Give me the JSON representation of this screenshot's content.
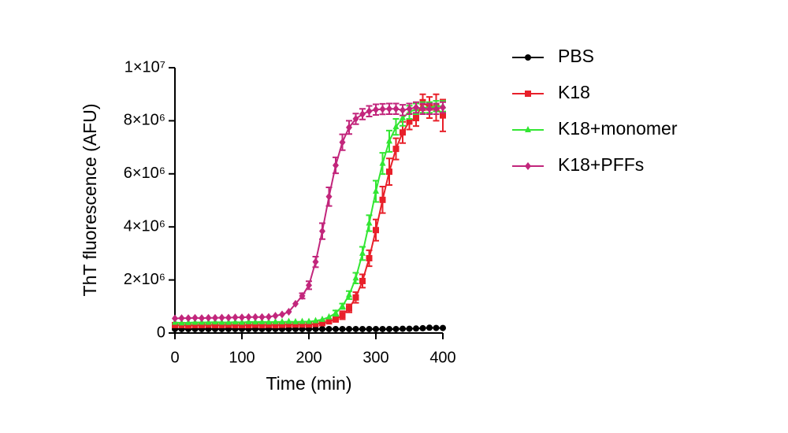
{
  "chart_data": {
    "type": "line",
    "xlabel": "Time (min)",
    "ylabel": "ThT fluorescence (AFU)",
    "xlim": [
      0,
      400
    ],
    "xticks": [
      0,
      100,
      200,
      300,
      400
    ],
    "ylim": [
      0,
      10000000
    ],
    "yticks": [
      0,
      {
        "value": 2000000,
        "label": "2×10⁶"
      },
      {
        "value": 4000000,
        "label": "4×10⁶"
      },
      {
        "value": 6000000,
        "label": "6×10⁶"
      },
      {
        "value": 8000000,
        "label": "8×10⁶"
      },
      {
        "value": 10000000,
        "label": "1×10⁷"
      }
    ],
    "x": [
      0,
      10,
      20,
      30,
      40,
      50,
      60,
      70,
      80,
      90,
      100,
      110,
      120,
      130,
      140,
      150,
      160,
      170,
      180,
      190,
      200,
      210,
      220,
      230,
      240,
      250,
      260,
      270,
      280,
      290,
      300,
      310,
      320,
      330,
      340,
      350,
      360,
      370,
      380,
      390,
      400
    ],
    "series": [
      {
        "name": "PBS",
        "color": "#000000",
        "marker": "circle",
        "values": [
          150000,
          150000,
          150000,
          150000,
          150000,
          150000,
          150000,
          150000,
          150000,
          150000,
          150000,
          150000,
          150000,
          150000,
          150000,
          150000,
          150000,
          150000,
          150000,
          150000,
          150000,
          150000,
          150000,
          150000,
          150000,
          150000,
          150000,
          150000,
          150000,
          150000,
          150000,
          150000,
          150000,
          150000,
          160000,
          160000,
          170000,
          180000,
          200000,
          190000,
          190000
        ],
        "errors": [
          0,
          0,
          0,
          0,
          0,
          0,
          0,
          0,
          0,
          0,
          0,
          0,
          0,
          0,
          0,
          0,
          0,
          0,
          0,
          0,
          0,
          0,
          0,
          0,
          0,
          0,
          0,
          0,
          0,
          0,
          0,
          0,
          0,
          0,
          0,
          0,
          0,
          0,
          0,
          0,
          0
        ]
      },
      {
        "name": "K18",
        "color": "#e8202a",
        "marker": "square",
        "values": [
          300000,
          300000,
          290000,
          300000,
          300000,
          310000,
          300000,
          300000,
          310000,
          300000,
          300000,
          300000,
          310000,
          300000,
          310000,
          300000,
          310000,
          320000,
          320000,
          320000,
          320000,
          340000,
          370000,
          440000,
          520000,
          670000,
          930000,
          1340000,
          1960000,
          2820000,
          3880000,
          5020000,
          6080000,
          6940000,
          7560000,
          7970000,
          8100000,
          8700000,
          8500000,
          8500000,
          8200000
        ],
        "errors": [
          0,
          0,
          0,
          0,
          0,
          0,
          0,
          0,
          0,
          0,
          0,
          0,
          0,
          0,
          0,
          0,
          0,
          0,
          0,
          0,
          0,
          0,
          0,
          0,
          100000,
          150000,
          150000,
          200000,
          250000,
          300000,
          400000,
          500000,
          500000,
          400000,
          400000,
          300000,
          300000,
          300000,
          400000,
          500000,
          600000
        ]
      },
      {
        "name": "K18+monomer",
        "color": "#33e633",
        "marker": "triangle",
        "values": [
          400000,
          380000,
          390000,
          400000,
          400000,
          400000,
          410000,
          400000,
          400000,
          410000,
          400000,
          420000,
          410000,
          420000,
          410000,
          420000,
          420000,
          430000,
          420000,
          430000,
          430000,
          460000,
          510000,
          600000,
          750000,
          1010000,
          1430000,
          2070000,
          3000000,
          4140000,
          5340000,
          6390000,
          7230000,
          7770000,
          8110000,
          8320000,
          8450000,
          8500000,
          8500000,
          8550000,
          8550000
        ],
        "errors": [
          0,
          0,
          0,
          0,
          0,
          0,
          0,
          0,
          0,
          0,
          0,
          0,
          0,
          0,
          0,
          0,
          0,
          0,
          0,
          0,
          0,
          0,
          0,
          0,
          100000,
          100000,
          150000,
          200000,
          250000,
          300000,
          400000,
          400000,
          400000,
          300000,
          300000,
          250000,
          200000,
          200000,
          200000,
          200000,
          200000
        ]
      },
      {
        "name": "K18+PFFs",
        "color": "#c2267c",
        "marker": "diamond",
        "values": [
          550000,
          560000,
          560000,
          570000,
          560000,
          570000,
          570000,
          580000,
          580000,
          590000,
          590000,
          600000,
          600000,
          600000,
          610000,
          650000,
          700000,
          800000,
          1100000,
          1400000,
          1800000,
          2680000,
          3840000,
          5140000,
          6320000,
          7190000,
          7750000,
          8070000,
          8250000,
          8360000,
          8420000,
          8440000,
          8450000,
          8450000,
          8400000,
          8450000,
          8500000,
          8450000,
          8450000,
          8450000,
          8500000
        ],
        "errors": [
          0,
          0,
          0,
          0,
          0,
          0,
          0,
          0,
          0,
          0,
          0,
          0,
          0,
          0,
          0,
          0,
          0,
          0,
          0,
          100000,
          150000,
          200000,
          300000,
          350000,
          300000,
          300000,
          250000,
          200000,
          200000,
          200000,
          200000,
          200000,
          200000,
          200000,
          200000,
          200000,
          200000,
          200000,
          200000,
          200000,
          200000
        ]
      }
    ]
  }
}
